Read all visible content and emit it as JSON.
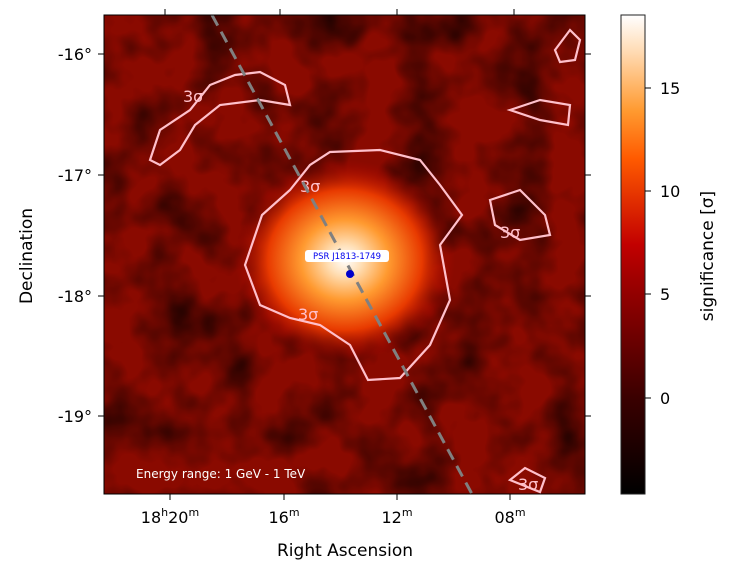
{
  "chart_data": {
    "type": "heatmap",
    "xlabel": "Right Ascension",
    "ylabel": "Declination",
    "x_ticks": [
      {
        "label": "18ʰ20ᵐ",
        "base": "18",
        "h": "h",
        "min": "20",
        "m": "m"
      },
      {
        "label": "16ᵐ",
        "base": "16",
        "m": "m"
      },
      {
        "label": "12ᵐ",
        "base": "12",
        "m": "m"
      },
      {
        "label": "08ᵐ",
        "base": "08",
        "m": "m"
      }
    ],
    "y_ticks": [
      "-16°",
      "-17°",
      "-18°",
      "-19°"
    ],
    "colorbar": {
      "label": "significance [σ]",
      "ticks": [
        "0",
        "5",
        "10",
        "15"
      ],
      "range": [
        -4.7,
        18.5
      ],
      "colormap": "gist_heat",
      "colors": [
        "#000000",
        "#5a0000",
        "#c00000",
        "#ff5a00",
        "#ff9a30",
        "#ffd9b0",
        "#ffffff"
      ]
    },
    "source_label": "PSR J1813-1749",
    "source_marker_color": "#0000cc",
    "annotation": "Energy range: 1 GeV - 1 TeV",
    "contour_level_label": "3σ",
    "contour_color": "#ffc0cb",
    "dashed_line_color": "#808080"
  }
}
